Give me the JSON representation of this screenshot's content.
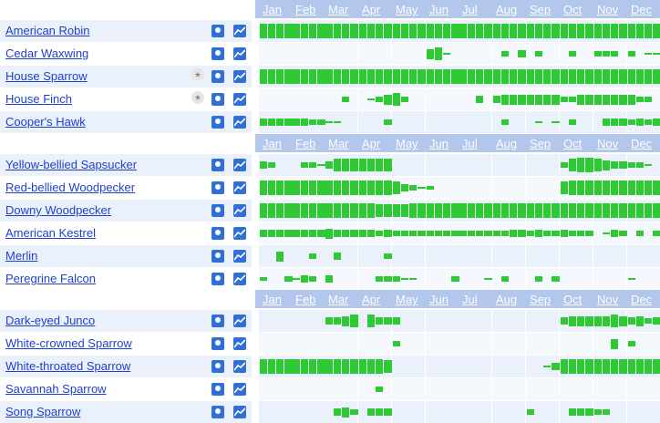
{
  "months": [
    "Jan",
    "Feb",
    "Mar",
    "Apr",
    "May",
    "Jun",
    "Jul",
    "Aug",
    "Sep",
    "Oct",
    "Nov",
    "Dec"
  ],
  "icons": {
    "map": "map-pin-icon",
    "chart": "line-chart-icon",
    "star": "asterisk-icon"
  },
  "colors": {
    "bar": "#2fc934",
    "header": "#b3c6ec",
    "link": "#1f3fd1"
  },
  "groups": [
    {
      "species": [
        {
          "name": "American Robin",
          "star": false,
          "abundance": [
            0.7,
            0.7,
            0.7,
            0.7,
            0.7,
            0.7,
            0.7,
            0.7,
            0.7,
            0.7,
            0.7,
            0.7,
            0.7,
            0.7,
            0.7,
            0.7,
            0.7,
            0.7,
            0.7,
            0.7,
            0.7,
            0.7,
            0.7,
            0.7,
            0.7,
            0.7,
            0.7,
            0.7,
            0.7,
            0.7,
            0.7,
            0.7,
            0.7,
            0.7,
            0.7,
            0.7,
            0.7,
            0.7,
            0.7,
            0.7,
            0.7,
            0.7,
            0.7,
            0.7,
            0.7,
            0.7,
            0.7,
            0.7
          ]
        },
        {
          "name": "Cedar Waxwing",
          "star": false,
          "abundance": [
            0,
            0,
            0,
            0,
            0,
            0,
            0,
            0,
            0,
            0,
            0,
            0,
            0,
            0,
            0,
            0,
            0,
            0,
            0,
            0,
            0.5,
            0.6,
            0.1,
            0,
            0,
            0,
            0,
            0,
            0,
            0.3,
            0,
            0.4,
            0,
            0.3,
            0,
            0,
            0,
            0.3,
            0,
            0,
            0.3,
            0.3,
            0.3,
            0,
            0.3,
            0,
            0.05,
            0.05
          ]
        },
        {
          "name": "House Sparrow",
          "star": true,
          "abundance": [
            0.7,
            0.7,
            0.7,
            0.7,
            0.7,
            0.7,
            0.7,
            0.7,
            0.7,
            0.7,
            0.7,
            0.7,
            0.7,
            0.7,
            0.7,
            0.7,
            0.7,
            0.7,
            0.7,
            0.7,
            0.7,
            0.7,
            0.7,
            0.7,
            0.7,
            0.7,
            0.7,
            0.7,
            0.7,
            0.7,
            0.7,
            0.7,
            0.7,
            0.7,
            0.7,
            0.7,
            0.7,
            0.7,
            0.7,
            0.7,
            0.7,
            0.7,
            0.7,
            0.7,
            0.7,
            0.7,
            0.7,
            0.7
          ]
        },
        {
          "name": "House Finch",
          "star": true,
          "abundance": [
            0,
            0,
            0,
            0,
            0,
            0,
            0,
            0,
            0,
            0,
            0.3,
            0,
            0,
            0.05,
            0.3,
            0.5,
            0.6,
            0.3,
            0,
            0,
            0,
            0,
            0,
            0,
            0,
            0,
            0.4,
            0,
            0.4,
            0.5,
            0.5,
            0.5,
            0.5,
            0.5,
            0.5,
            0.5,
            0.3,
            0.3,
            0.5,
            0.5,
            0.5,
            0.5,
            0.5,
            0.5,
            0.5,
            0.3,
            0.3,
            0
          ]
        },
        {
          "name": "Cooper's Hawk",
          "star": false,
          "abundance": [
            0.4,
            0.4,
            0.4,
            0.4,
            0.4,
            0.4,
            0.3,
            0.3,
            0.05,
            0.05,
            0,
            0,
            0,
            0,
            0,
            0.3,
            0,
            0,
            0,
            0,
            0,
            0,
            0,
            0,
            0,
            0,
            0,
            0,
            0,
            0.3,
            0,
            0,
            0,
            0.05,
            0,
            0.05,
            0,
            0.3,
            0,
            0,
            0,
            0.4,
            0.4,
            0.4,
            0.3,
            0.4,
            0.3,
            0.4
          ]
        }
      ]
    },
    {
      "species": [
        {
          "name": "Yellow-bellied Sapsucker",
          "star": false,
          "abundance": [
            0.4,
            0.3,
            0,
            0,
            0,
            0.3,
            0.3,
            0.05,
            0.4,
            0.6,
            0.6,
            0.6,
            0.6,
            0.6,
            0.6,
            0.6,
            0,
            0,
            0,
            0,
            0,
            0,
            0,
            0,
            0,
            0,
            0,
            0,
            0,
            0,
            0,
            0,
            0,
            0,
            0,
            0,
            0.3,
            0.6,
            0.7,
            0.7,
            0.6,
            0.5,
            0.4,
            0.4,
            0.3,
            0.3,
            0.05,
            0
          ]
        },
        {
          "name": "Red-bellied Woodpecker",
          "star": false,
          "abundance": [
            0.7,
            0.7,
            0.7,
            0.7,
            0.7,
            0.7,
            0.7,
            0.7,
            0.7,
            0.7,
            0.7,
            0.7,
            0.7,
            0.7,
            0.7,
            0.7,
            0.6,
            0.4,
            0.3,
            0.05,
            0.2,
            0,
            0,
            0,
            0,
            0,
            0,
            0,
            0,
            0,
            0,
            0,
            0,
            0,
            0,
            0,
            0.6,
            0.7,
            0.7,
            0.7,
            0.7,
            0.7,
            0.7,
            0.7,
            0.7,
            0.7,
            0.7,
            0.7
          ]
        },
        {
          "name": "Downy Woodpecker",
          "star": false,
          "abundance": [
            0.7,
            0.7,
            0.7,
            0.7,
            0.7,
            0.7,
            0.7,
            0.7,
            0.7,
            0.7,
            0.7,
            0.7,
            0.7,
            0.7,
            0.6,
            0.6,
            0.6,
            0.6,
            0.7,
            0.7,
            0.7,
            0.7,
            0.7,
            0.7,
            0.7,
            0.7,
            0.7,
            0.7,
            0.7,
            0.7,
            0.7,
            0.7,
            0.7,
            0.7,
            0.7,
            0.7,
            0.7,
            0.7,
            0.7,
            0.7,
            0.7,
            0.7,
            0.7,
            0.7,
            0.7,
            0.7,
            0.7,
            0.7
          ]
        },
        {
          "name": "American Kestrel",
          "star": false,
          "abundance": [
            0.4,
            0.4,
            0.4,
            0.4,
            0.4,
            0.4,
            0.4,
            0.4,
            0.5,
            0.4,
            0.4,
            0.4,
            0.4,
            0.4,
            0.3,
            0.4,
            0.3,
            0.3,
            0.3,
            0.3,
            0.3,
            0.3,
            0.3,
            0.3,
            0.3,
            0.3,
            0.3,
            0.3,
            0.3,
            0.3,
            0.4,
            0.4,
            0.3,
            0.4,
            0.3,
            0.3,
            0.4,
            0.3,
            0.3,
            0.3,
            0,
            0.05,
            0.4,
            0.3,
            0,
            0.3,
            0,
            0.3
          ]
        },
        {
          "name": "Merlin",
          "star": false,
          "abundance": [
            0,
            0,
            0.5,
            0,
            0,
            0,
            0.3,
            0,
            0,
            0.4,
            0,
            0,
            0,
            0,
            0,
            0.3,
            0,
            0,
            0,
            0,
            0,
            0,
            0,
            0,
            0,
            0,
            0,
            0,
            0,
            0,
            0,
            0,
            0,
            0,
            0,
            0,
            0,
            0,
            0,
            0,
            0,
            0,
            0,
            0,
            0,
            0,
            0,
            0
          ]
        },
        {
          "name": "Peregrine Falcon",
          "star": false,
          "abundance": [
            0.2,
            0,
            0,
            0.3,
            0.05,
            0.4,
            0.3,
            0,
            0.4,
            0,
            0,
            0,
            0,
            0,
            0.3,
            0.3,
            0.3,
            0.05,
            0.05,
            0,
            0,
            0,
            0,
            0.3,
            0,
            0,
            0,
            0.05,
            0,
            0.3,
            0,
            0,
            0,
            0.3,
            0,
            0.3,
            0,
            0,
            0,
            0,
            0,
            0,
            0,
            0,
            0.05,
            0,
            0,
            0
          ]
        }
      ]
    },
    {
      "species": [
        {
          "name": "Dark-eyed Junco",
          "star": false,
          "abundance": [
            0,
            0,
            0,
            0,
            0,
            0,
            0,
            0,
            0.4,
            0.4,
            0.5,
            0.6,
            0,
            0.6,
            0.4,
            0.4,
            0.4,
            0,
            0,
            0,
            0,
            0,
            0,
            0,
            0,
            0,
            0,
            0,
            0,
            0,
            0,
            0,
            0,
            0,
            0,
            0,
            0.4,
            0.5,
            0.5,
            0.5,
            0.5,
            0.5,
            0.6,
            0.5,
            0.4,
            0.5,
            0.3,
            0.4
          ]
        },
        {
          "name": "White-crowned Sparrow",
          "star": false,
          "abundance": [
            0,
            0,
            0,
            0,
            0,
            0,
            0,
            0,
            0,
            0,
            0,
            0,
            0,
            0,
            0,
            0,
            0.3,
            0,
            0,
            0,
            0,
            0,
            0,
            0,
            0,
            0,
            0,
            0,
            0,
            0,
            0,
            0,
            0,
            0,
            0,
            0,
            0,
            0,
            0,
            0,
            0,
            0,
            0.5,
            0,
            0.3,
            0,
            0,
            0
          ]
        },
        {
          "name": "White-throated Sparrow",
          "star": false,
          "abundance": [
            0.7,
            0.7,
            0.7,
            0.7,
            0.7,
            0.7,
            0.7,
            0.7,
            0.7,
            0.7,
            0.7,
            0.7,
            0.7,
            0.7,
            0.7,
            0.6,
            0,
            0,
            0,
            0,
            0,
            0,
            0,
            0,
            0,
            0,
            0,
            0,
            0,
            0,
            0,
            0,
            0,
            0,
            0.05,
            0.4,
            0.7,
            0.7,
            0.7,
            0.7,
            0.7,
            0.7,
            0.7,
            0.7,
            0.7,
            0.7,
            0.7,
            0.7
          ]
        },
        {
          "name": "Savannah Sparrow",
          "star": false,
          "abundance": [
            0,
            0,
            0,
            0,
            0,
            0,
            0,
            0,
            0,
            0,
            0,
            0,
            0,
            0,
            0.3,
            0,
            0,
            0,
            0,
            0,
            0,
            0,
            0,
            0,
            0,
            0,
            0,
            0,
            0,
            0,
            0,
            0,
            0,
            0,
            0,
            0,
            0,
            0,
            0,
            0,
            0,
            0,
            0,
            0,
            0,
            0,
            0,
            0
          ]
        },
        {
          "name": "Song Sparrow",
          "star": false,
          "abundance": [
            0,
            0,
            0,
            0,
            0,
            0,
            0,
            0,
            0,
            0.4,
            0.5,
            0.3,
            0,
            0.4,
            0.4,
            0.4,
            0,
            0,
            0,
            0,
            0,
            0,
            0,
            0,
            0,
            0,
            0,
            0,
            0,
            0,
            0,
            0,
            0.3,
            0,
            0,
            0,
            0,
            0.4,
            0.4,
            0.4,
            0.3,
            0.3,
            0,
            0,
            0,
            0,
            0,
            0
          ]
        }
      ]
    }
  ]
}
